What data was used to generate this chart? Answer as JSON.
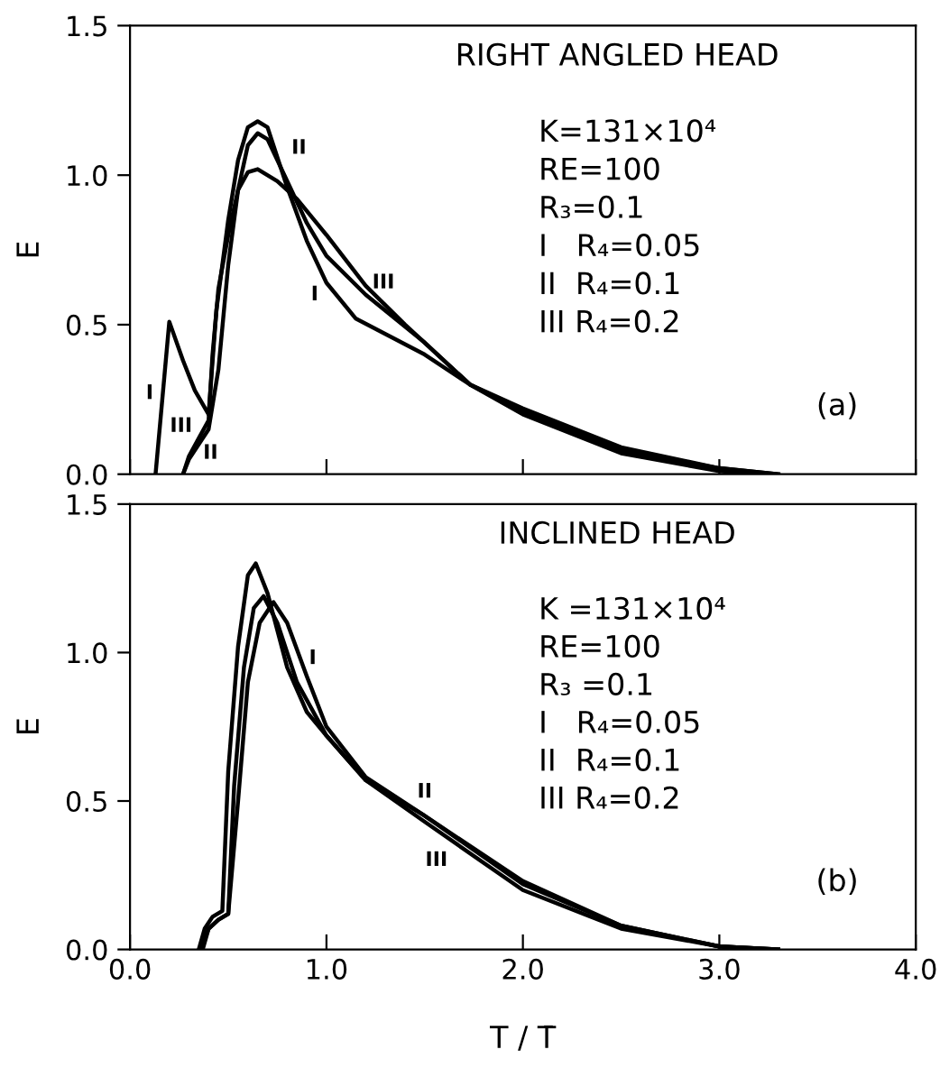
{
  "chart_data": [
    {
      "type": "line",
      "title": "RIGHT ANGLED HEAD",
      "ylabel": "E",
      "xlim": [
        0,
        4
      ],
      "ylim": [
        0,
        1.5
      ],
      "xticks": [
        {
          "value": 0,
          "label": null
        },
        {
          "value": 1,
          "label": null
        },
        {
          "value": 2,
          "label": null
        },
        {
          "value": 3,
          "label": null
        },
        {
          "value": 4,
          "label": null
        }
      ],
      "yticks": [
        {
          "value": 0,
          "label": "0.0"
        },
        {
          "value": 0.5,
          "label": "0.5"
        },
        {
          "value": 1,
          "label": "1.0"
        },
        {
          "value": 1.5,
          "label": "1.5"
        }
      ],
      "tick_labels": "y",
      "grid": false,
      "legend": false,
      "marker": "none",
      "line_style": "solid",
      "series": [
        {
          "color": "#000000",
          "x": [
            0.13,
            0.2,
            0.27,
            0.33,
            0.4,
            0.44,
            0.5,
            0.55,
            0.6,
            0.65,
            0.7,
            0.8,
            0.9,
            1.0,
            1.15,
            1.5,
            1.73,
            2.0,
            2.5,
            3.0,
            3.2
          ],
          "values": [
            0,
            0.51,
            0.38,
            0.28,
            0.2,
            0.55,
            0.85,
            1.05,
            1.16,
            1.18,
            1.16,
            0.96,
            0.78,
            0.64,
            0.52,
            0.4,
            0.3,
            0.2,
            0.07,
            0.01,
            0
          ]
        },
        {
          "color": "#000000",
          "x": [
            0.27,
            0.3,
            0.35,
            0.4,
            0.45,
            0.5,
            0.55,
            0.6,
            0.65,
            0.7,
            0.8,
            0.9,
            1.0,
            1.2,
            1.5,
            1.73,
            2.0,
            2.5,
            3.0,
            3.3
          ],
          "values": [
            0,
            0.05,
            0.1,
            0.15,
            0.35,
            0.7,
            0.95,
            1.1,
            1.14,
            1.12,
            0.98,
            0.84,
            0.73,
            0.6,
            0.44,
            0.3,
            0.22,
            0.09,
            0.02,
            0
          ]
        },
        {
          "color": "#000000",
          "x": [
            0.27,
            0.3,
            0.35,
            0.4,
            0.42,
            0.45,
            0.5,
            0.55,
            0.6,
            0.65,
            0.75,
            0.85,
            1.0,
            1.2,
            1.4,
            1.73,
            2.0,
            2.5,
            3.0,
            3.3
          ],
          "values": [
            0,
            0.06,
            0.12,
            0.18,
            0.4,
            0.62,
            0.8,
            0.95,
            1.01,
            1.02,
            0.98,
            0.92,
            0.8,
            0.63,
            0.5,
            0.3,
            0.21,
            0.08,
            0.02,
            0
          ]
        }
      ],
      "annotations": [
        "K=131×10⁴",
        "RE=100",
        "R₃=0.1",
        "I   R₄=0.05",
        "II  R₄=0.1",
        "III R₄=0.2",
        "(a)",
        "I",
        "III",
        "II",
        "II",
        "I",
        "III"
      ]
    },
    {
      "type": "line",
      "title": "INCLINED HEAD",
      "xlabel": "T / T̄",
      "ylabel": "E",
      "xlim": [
        0,
        4
      ],
      "ylim": [
        0,
        1.5
      ],
      "xticks": [
        {
          "value": 0,
          "label": "0.0"
        },
        {
          "value": 1,
          "label": "1.0"
        },
        {
          "value": 2,
          "label": "2.0"
        },
        {
          "value": 3,
          "label": "3.0"
        },
        {
          "value": 4,
          "label": "4.0"
        }
      ],
      "yticks": [
        {
          "value": 0,
          "label": "0.0"
        },
        {
          "value": 0.5,
          "label": "0.5"
        },
        {
          "value": 1,
          "label": "1.0"
        },
        {
          "value": 1.5,
          "label": "1.5"
        }
      ],
      "grid": false,
      "legend": false,
      "marker": "none",
      "line_style": "solid",
      "series": [
        {
          "color": "#000000",
          "x": [
            0.37,
            0.4,
            0.45,
            0.5,
            0.55,
            0.6,
            0.66,
            0.73,
            0.8,
            0.9,
            1.0,
            1.2,
            1.5,
            2.0,
            2.5,
            3.0,
            3.3
          ],
          "values": [
            0,
            0.07,
            0.1,
            0.12,
            0.5,
            0.9,
            1.1,
            1.17,
            1.1,
            0.92,
            0.75,
            0.58,
            0.45,
            0.23,
            0.08,
            0.01,
            0
          ]
        },
        {
          "color": "#000000",
          "x": [
            0.36,
            0.4,
            0.45,
            0.5,
            0.53,
            0.58,
            0.63,
            0.68,
            0.75,
            0.85,
            1.0,
            1.2,
            1.5,
            2.0,
            2.5,
            3.0,
            3.3
          ],
          "values": [
            0,
            0.07,
            0.1,
            0.12,
            0.55,
            0.95,
            1.15,
            1.19,
            1.1,
            0.9,
            0.72,
            0.57,
            0.45,
            0.22,
            0.08,
            0.01,
            0
          ]
        },
        {
          "color": "#000000",
          "x": [
            0.35,
            0.38,
            0.42,
            0.47,
            0.5,
            0.55,
            0.6,
            0.64,
            0.7,
            0.8,
            0.9,
            1.0,
            1.2,
            1.5,
            2.0,
            2.5,
            3.0,
            3.3
          ],
          "values": [
            0,
            0.07,
            0.11,
            0.13,
            0.6,
            1.02,
            1.26,
            1.3,
            1.2,
            0.95,
            0.8,
            0.72,
            0.57,
            0.43,
            0.2,
            0.07,
            0.01,
            0
          ]
        }
      ],
      "annotations": [
        "K =131×10⁴",
        "RE=100",
        "R₃ =0.1",
        "I   R₄=0.05",
        "II  R₄=0.1",
        "III R₄=0.2",
        "(b)",
        "I",
        "II",
        "III"
      ]
    }
  ]
}
